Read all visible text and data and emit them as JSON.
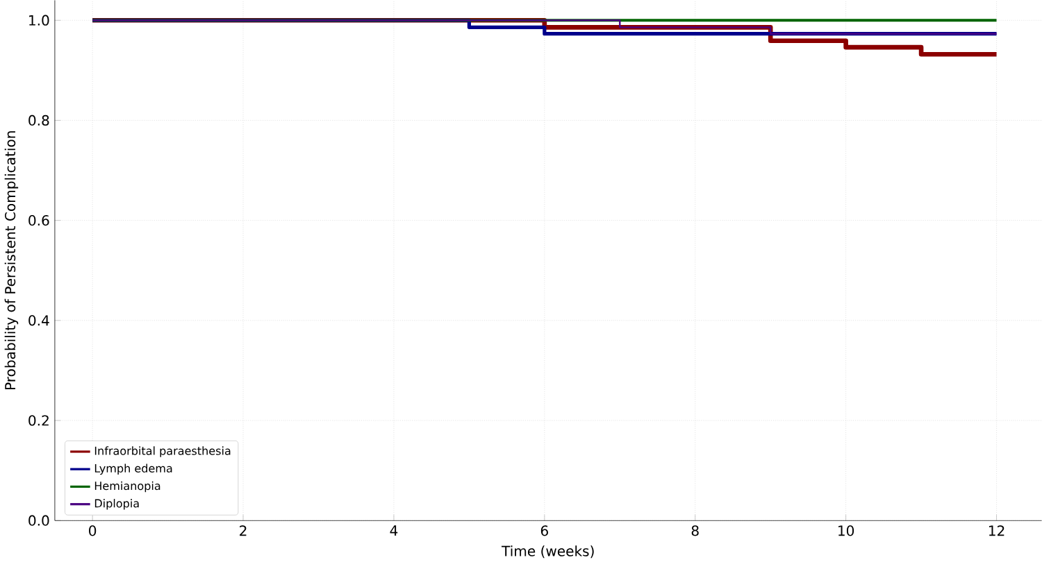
{
  "chart_data": {
    "type": "step",
    "xlabel": "Time (weeks)",
    "ylabel": "Probability of Persistent Complication",
    "xlim": [
      -0.5,
      12.6
    ],
    "ylim": [
      0,
      1.04
    ],
    "xticks": [
      0,
      2,
      4,
      6,
      8,
      10,
      12
    ],
    "yticks": [
      {
        "value": 0,
        "label": "0.0"
      },
      {
        "value": 0.2,
        "label": "0.2"
      },
      {
        "value": 0.4,
        "label": "0.4"
      },
      {
        "value": 0.6,
        "label": "0.6"
      },
      {
        "value": 0.8,
        "label": "0.8"
      },
      {
        "value": 1.0,
        "label": "1.0"
      }
    ],
    "grid": true,
    "legend": "bottom left",
    "series": [
      {
        "name": "Infraorbital paraesthesia",
        "color": "#8b0000",
        "x": [
          0,
          6,
          9,
          10,
          11,
          12
        ],
        "values": [
          1.0,
          0.986,
          0.959,
          0.946,
          0.932,
          0.932
        ]
      },
      {
        "name": "Lymph edema",
        "color": "#00008b",
        "x": [
          0,
          5,
          6,
          12
        ],
        "values": [
          1.0,
          0.986,
          0.973,
          0.973
        ]
      },
      {
        "name": "Hemianopia",
        "color": "#006400",
        "x": [
          0,
          12
        ],
        "values": [
          1.0,
          1.0
        ]
      },
      {
        "name": "Diplopia",
        "color": "#4b0082",
        "x": [
          0,
          7,
          9,
          12
        ],
        "values": [
          1.0,
          0.986,
          0.973,
          0.973
        ]
      }
    ]
  }
}
